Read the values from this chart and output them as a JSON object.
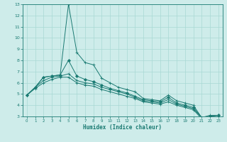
{
  "xlabel": "Humidex (Indice chaleur)",
  "ylabel": "",
  "xlim": [
    -0.5,
    23.5
  ],
  "ylim": [
    3,
    13
  ],
  "yticks": [
    3,
    4,
    5,
    6,
    7,
    8,
    9,
    10,
    11,
    12,
    13
  ],
  "xticks": [
    0,
    1,
    2,
    3,
    4,
    5,
    6,
    7,
    8,
    9,
    10,
    11,
    12,
    13,
    14,
    15,
    16,
    17,
    18,
    19,
    20,
    21,
    22,
    23
  ],
  "background_color": "#ceecea",
  "grid_color": "#a8d8d4",
  "line_color": "#1a7a72",
  "series": [
    [
      4.9,
      5.6,
      6.5,
      6.6,
      6.7,
      13.0,
      8.7,
      7.8,
      7.6,
      6.4,
      6.0,
      5.6,
      5.4,
      5.2,
      4.6,
      4.5,
      4.4,
      4.9,
      4.4,
      4.2,
      4.0,
      2.9,
      3.1,
      3.1
    ],
    [
      4.9,
      5.6,
      6.5,
      6.6,
      6.7,
      8.0,
      6.6,
      6.3,
      6.1,
      5.8,
      5.5,
      5.3,
      5.1,
      4.8,
      4.5,
      4.4,
      4.3,
      4.7,
      4.2,
      4.0,
      3.8,
      2.9,
      3.0,
      3.1
    ],
    [
      4.9,
      5.6,
      6.2,
      6.5,
      6.6,
      6.8,
      6.2,
      6.0,
      5.9,
      5.6,
      5.4,
      5.2,
      5.0,
      4.7,
      4.4,
      4.3,
      4.2,
      4.5,
      4.1,
      3.9,
      3.7,
      2.9,
      3.0,
      3.1
    ],
    [
      4.9,
      5.5,
      6.0,
      6.3,
      6.5,
      6.5,
      6.0,
      5.8,
      5.7,
      5.4,
      5.2,
      5.0,
      4.8,
      4.6,
      4.3,
      4.2,
      4.1,
      4.3,
      4.0,
      3.8,
      3.6,
      2.8,
      2.9,
      3.0
    ]
  ]
}
